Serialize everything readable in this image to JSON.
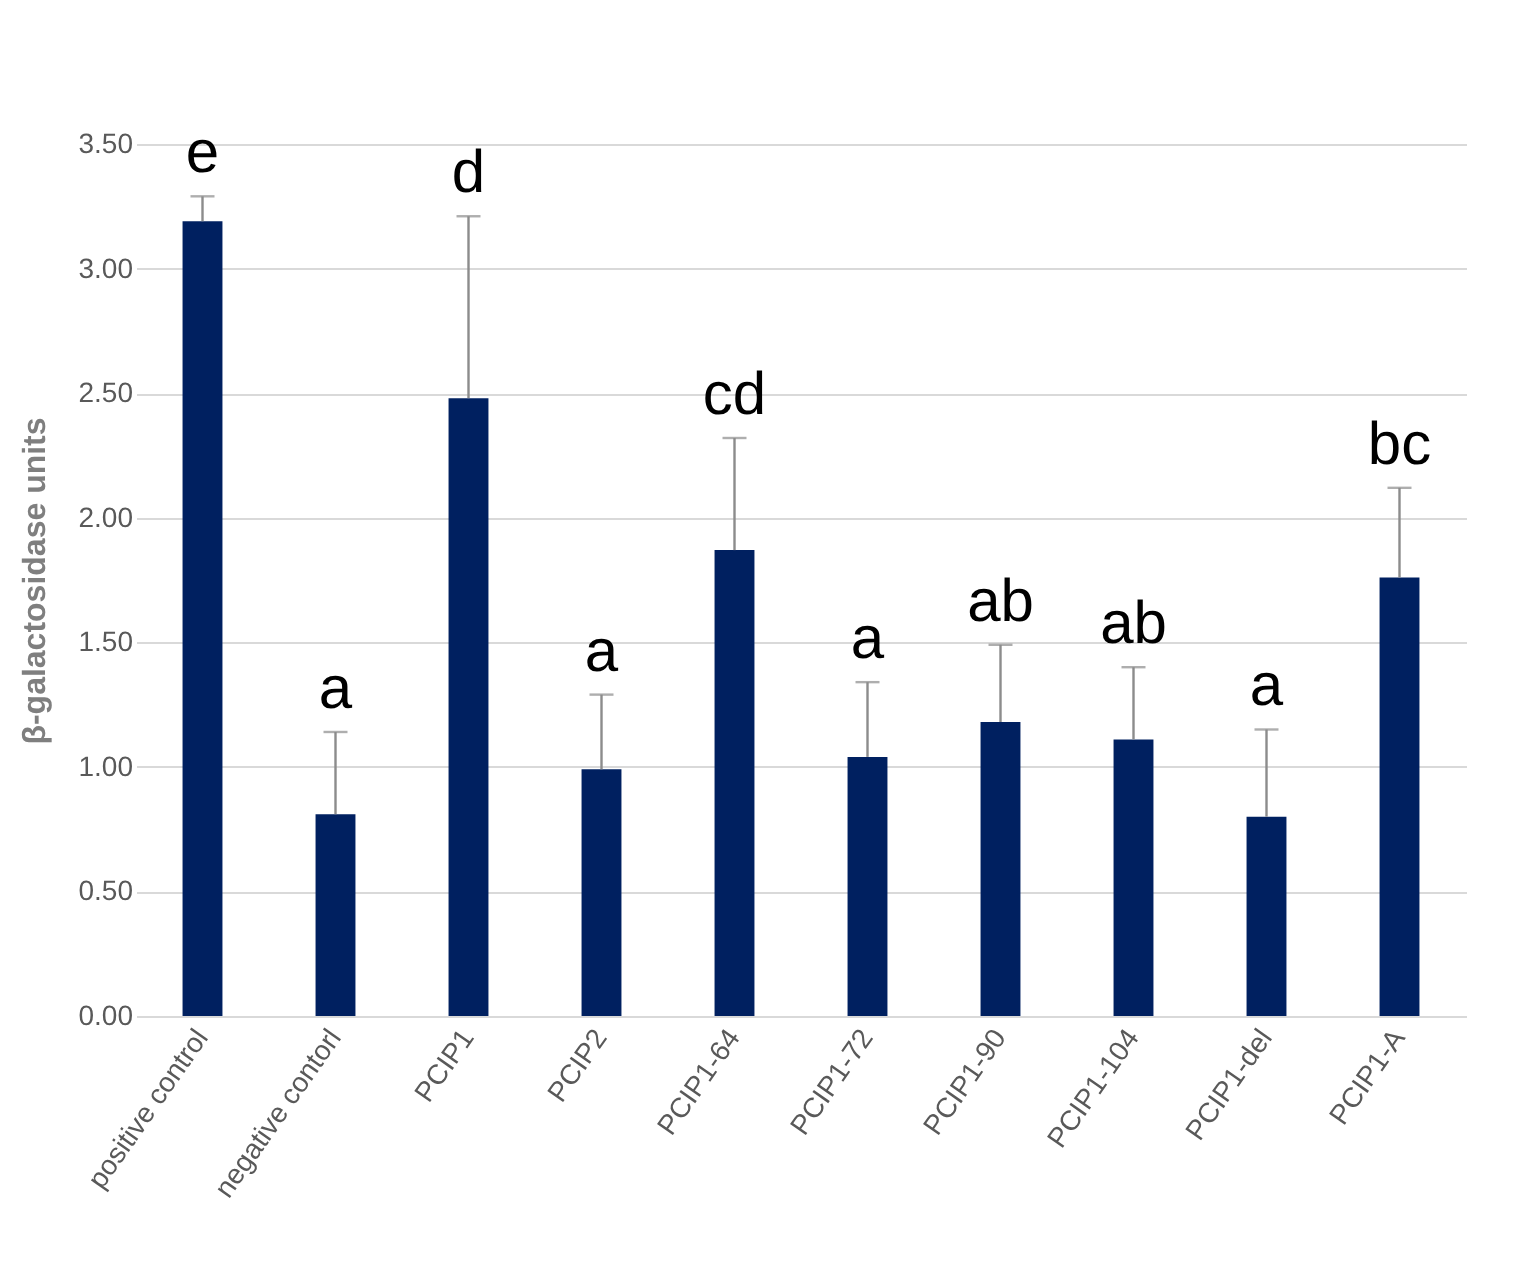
{
  "chart_data": {
    "type": "bar",
    "ylabel": "β-galactosidase units",
    "categories": [
      "positive control",
      "negative contorl",
      "PCIP1",
      "PCIP2",
      "PCIP1-64",
      "PCIP1-72",
      "PCIP1-90",
      "PCIP1-104",
      "PCIP1-del",
      "PCIP1-A"
    ],
    "values": [
      3.19,
      0.81,
      2.48,
      0.99,
      1.87,
      1.04,
      1.18,
      1.11,
      0.8,
      1.76
    ],
    "errors": [
      [
        3.19,
        3.29
      ],
      [
        0.81,
        1.14
      ],
      [
        2.48,
        3.21
      ],
      [
        0.99,
        1.29
      ],
      [
        1.87,
        2.32
      ],
      [
        1.04,
        1.34
      ],
      [
        1.18,
        1.49
      ],
      [
        1.11,
        1.4
      ],
      [
        0.8,
        1.15
      ],
      [
        1.76,
        2.12
      ]
    ],
    "color": "#002060",
    "ylim": [
      0,
      3.5
    ],
    "yticks": [
      {
        "value": 0,
        "label": "0.00"
      },
      {
        "value": 0.5,
        "label": "0.50"
      },
      {
        "value": 1,
        "label": "1.00"
      },
      {
        "value": 1.5,
        "label": "1.50"
      },
      {
        "value": 2,
        "label": "2.00"
      },
      {
        "value": 2.5,
        "label": "2.50"
      },
      {
        "value": 3,
        "label": "3.00"
      },
      {
        "value": 3.5,
        "label": "3.50"
      }
    ],
    "grid": "y",
    "annotations": [
      {
        "text": "e",
        "x": "positive control",
        "y": 3.29
      },
      {
        "text": "a",
        "x": "negative contorl",
        "y": 1.14
      },
      {
        "text": "d",
        "x": "PCIP1",
        "y": 3.21
      },
      {
        "text": "a",
        "x": "PCIP2",
        "y": 1.29
      },
      {
        "text": "cd",
        "x": "PCIP1-64",
        "y": 2.32
      },
      {
        "text": "a",
        "x": "PCIP1-72",
        "y": 1.34
      },
      {
        "text": "ab",
        "x": "PCIP1-90",
        "y": 1.49
      },
      {
        "text": "ab",
        "x": "PCIP1-104",
        "y": 1.4
      },
      {
        "text": "a",
        "x": "PCIP1-del",
        "y": 1.15
      },
      {
        "text": "bc",
        "x": "PCIP1-A",
        "y": 2.12
      }
    ]
  }
}
